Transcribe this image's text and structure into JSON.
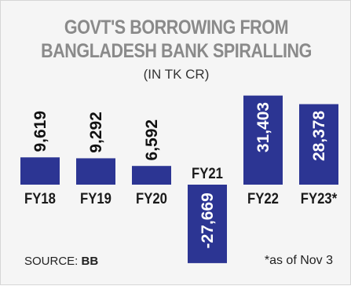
{
  "title_line1": "GOVT'S BORROWING FROM",
  "title_line2": "BANGLADESH BANK SPIRALLING",
  "subtitle": "(IN TK CR)",
  "source_label": "SOURCE:",
  "source_value": "BB",
  "footnote": "*as of Nov 3",
  "colors": {
    "bar": "#2c3593",
    "title": "#8a8a8a",
    "background": "#f5f5f5"
  },
  "chart_data": {
    "type": "bar",
    "categories": [
      "FY18",
      "FY19",
      "FY20",
      "FY21",
      "FY22",
      "FY23*"
    ],
    "values": [
      9619,
      9292,
      6592,
      -27669,
      31403,
      28378
    ],
    "value_labels": [
      "9,619",
      "9,292",
      "6,592",
      "-27,669",
      "31,403",
      "28,378"
    ],
    "title": "GOVT'S BORROWING FROM BANGLADESH BANK SPIRALLING",
    "subtitle": "(IN TK CR)",
    "ylim": [
      -27669,
      31403
    ],
    "grid": false
  }
}
